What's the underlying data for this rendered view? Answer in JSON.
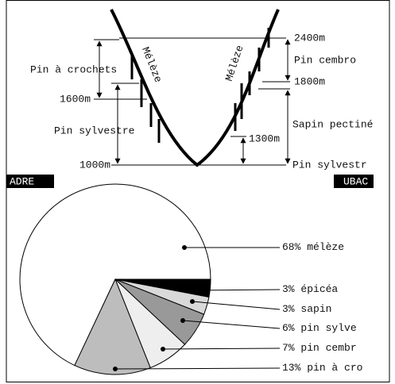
{
  "diagram": {
    "left_labels": {
      "pin_crochets": "Pin à crochets",
      "alt_1600": "1600m",
      "pin_sylvestre": "Pin sylvestre",
      "alt_1000": "1000m",
      "meleze": "Mélèze",
      "side": "ADRE"
    },
    "right_labels": {
      "alt_2400": "2400m",
      "pin_cembro": "Pin cembro",
      "alt_1800": "1800m",
      "sapin": "Sapin pectiné",
      "alt_1300": "1300m",
      "pin_sylvestre": "Pin sylvestr",
      "meleze": "Mélèze",
      "side": "UBAC"
    }
  },
  "chart_data": {
    "type": "pie",
    "categories": [
      "mélèze",
      "épicéa",
      "sapin",
      "pin sylve",
      "pin cembr",
      "pin à cro"
    ],
    "values": [
      68,
      3,
      3,
      6,
      7,
      13
    ],
    "value_labels": [
      "68%",
      "3%",
      "3%",
      "6%",
      "7%",
      "13%"
    ],
    "colors": [
      "#ffffff",
      "#000000",
      "#d9d9d9",
      "#999999",
      "#eeeeee",
      "#bdbdbd"
    ]
  }
}
